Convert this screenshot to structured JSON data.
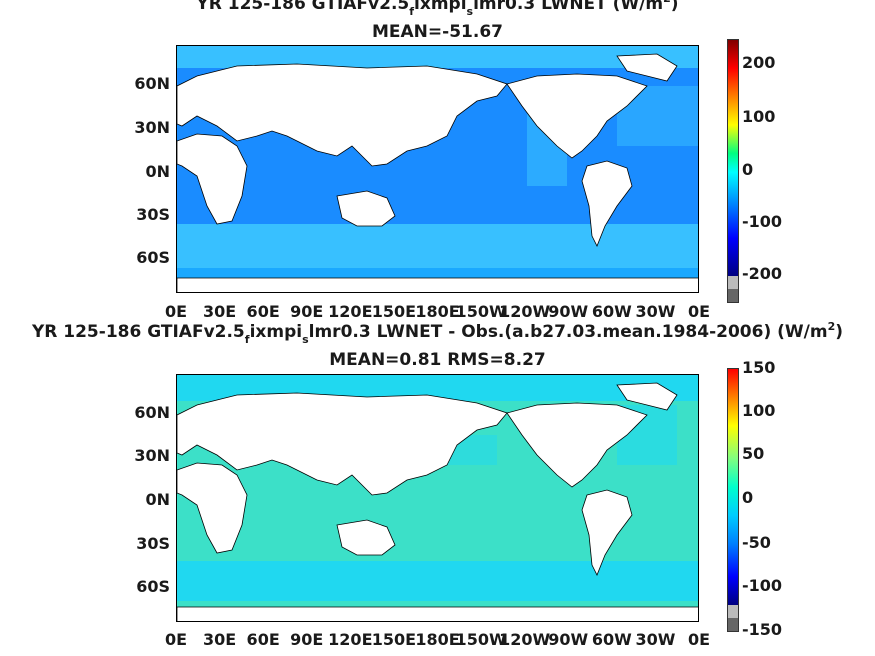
{
  "maps": [
    {
      "title_parts": {
        "a": "YR 125-186 GTIAFv2.5",
        "s1": "f",
        "b": "ixmpi",
        "s2": "s",
        "c": "lmr0.3  LWNET (W/m",
        "sup": "2",
        "d": ")"
      },
      "mean_line": "MEAN=-51.67",
      "colorbar": {
        "ticks": [
          "200",
          "100",
          "0",
          "-100",
          "-200"
        ],
        "range": [
          -250,
          250
        ],
        "colormap": "jet"
      },
      "colors": {
        "ocean": "#1a8cff",
        "ocean_light": "#38c0ff",
        "land": "#ffffff"
      }
    },
    {
      "title_parts": {
        "a": "YR 125-186 GTIAFv2.5",
        "s1": "f",
        "b": "ixmpi",
        "s2": "s",
        "c": "lmr0.3 LWNET - Obs.(a.b27.03.mean.1984-2006) (W/m",
        "sup": "2",
        "d": ")"
      },
      "mean_line": "MEAN=0.81 RMS=8.27",
      "colorbar": {
        "ticks": [
          "150",
          "100",
          "50",
          "0",
          "-50",
          "-100",
          "-150"
        ],
        "range": [
          -150,
          150
        ],
        "colormap": "jet"
      },
      "colors": {
        "ocean": "#3ce0c8",
        "ocean_light": "#20d8f0",
        "land": "#ffffff"
      }
    }
  ],
  "lat_labels": [
    "60N",
    "30N",
    "0N",
    "30S",
    "60S"
  ],
  "lon_labels": [
    "0E",
    "30E",
    "60E",
    "90E",
    "120E",
    "150E",
    "180E",
    "150W",
    "120W",
    "90W",
    "60W",
    "30W",
    "0E"
  ]
}
